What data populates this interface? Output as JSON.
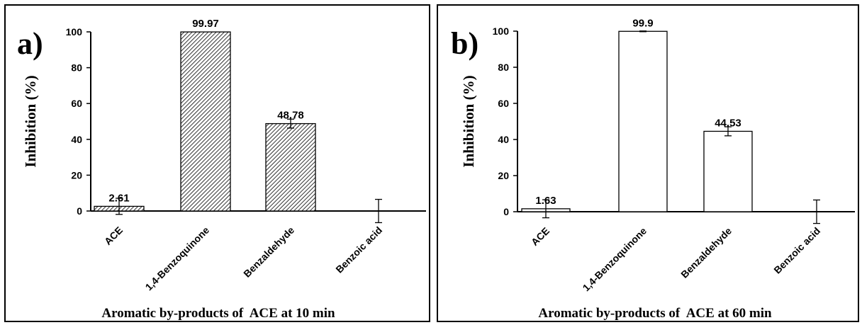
{
  "chart_data": [
    {
      "type": "bar",
      "panel_label": "a)",
      "xlabel": "Aromatic by-products of  ACE at 10 min",
      "ylabel": "Inhibition  (%)",
      "ylim": [
        0,
        100
      ],
      "yticks": [
        "0",
        "20",
        "40",
        "60",
        "80",
        "100"
      ],
      "categories": [
        "ACE",
        "1,4-Benzoquinone",
        "Benzaldehyde",
        "Benzoic acid"
      ],
      "values": [
        2.61,
        99.97,
        48.78,
        0
      ],
      "errors": [
        4.5,
        0,
        2.5,
        6.5
      ],
      "data_labels": [
        "2.61",
        "99.97",
        "48.78",
        ""
      ],
      "bar_fill": "hatched",
      "grid": false,
      "legend": "none"
    },
    {
      "type": "bar",
      "panel_label": "b)",
      "xlabel": "Aromatic by-products of  ACE at 60 min",
      "ylabel": "Inhibition  (%)",
      "ylim": [
        0,
        100
      ],
      "yticks": [
        "0",
        "20",
        "40",
        "60",
        "80",
        "100"
      ],
      "categories": [
        "ACE",
        "1,4-Benzoquinone",
        "Benzaldehyde",
        "Benzoic acid"
      ],
      "values": [
        1.63,
        99.9,
        44.53,
        0
      ],
      "errors": [
        5,
        0.2,
        2.5,
        6.5
      ],
      "data_labels": [
        "1.63",
        "99.9",
        "44.53",
        ""
      ],
      "bar_fill": "white",
      "grid": false,
      "legend": "none"
    }
  ],
  "colors": {
    "axis": "#000000",
    "bar_stroke": "#000000",
    "hatch": "#000000",
    "bar_white": "#ffffff"
  }
}
